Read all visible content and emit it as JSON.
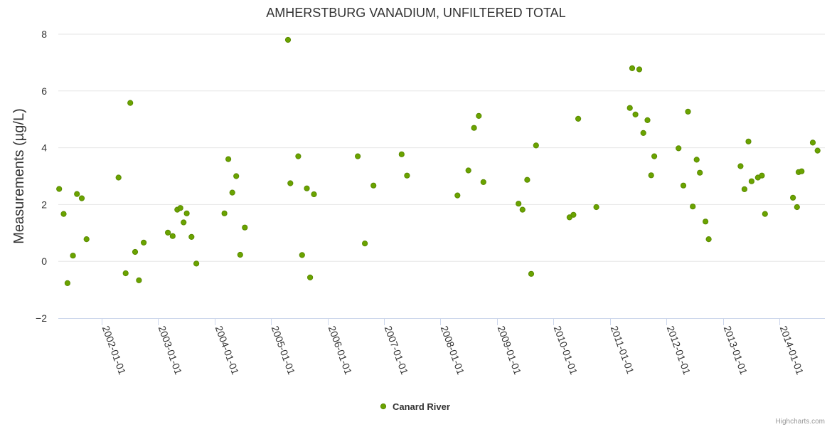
{
  "chart_data": {
    "type": "scatter",
    "title": "AMHERSTBURG VANADIUM, UNFILTERED TOTAL",
    "ylabel": "Measurements (µg/L)",
    "xlabel": "",
    "ylim": [
      -2,
      8
    ],
    "yticks": [
      -2,
      0,
      2,
      4,
      6,
      8
    ],
    "xlim": [
      "2001-03-25",
      "2014-10-13"
    ],
    "xticks": [
      "2002-01-01",
      "2003-01-01",
      "2004-01-01",
      "2005-01-01",
      "2006-01-01",
      "2007-01-01",
      "2008-01-01",
      "2009-01-01",
      "2010-01-01",
      "2011-01-01",
      "2012-01-01",
      "2013-01-01",
      "2014-01-01"
    ],
    "grid": true,
    "legend_position": "bottom-center",
    "series": [
      {
        "name": "Canard River",
        "color": "#6aa300",
        "stroke": "#5a8a00",
        "points": [
          [
            "2001-04-01",
            2.55
          ],
          [
            "2001-04-30",
            1.67
          ],
          [
            "2001-05-25",
            -0.77
          ],
          [
            "2001-06-29",
            0.2
          ],
          [
            "2001-07-25",
            2.37
          ],
          [
            "2001-08-25",
            2.22
          ],
          [
            "2001-09-25",
            0.78
          ],
          [
            "2002-04-20",
            2.95
          ],
          [
            "2002-06-05",
            -0.42
          ],
          [
            "2002-07-05",
            5.58
          ],
          [
            "2002-08-05",
            0.33
          ],
          [
            "2002-08-30",
            -0.67
          ],
          [
            "2002-09-30",
            0.66
          ],
          [
            "2003-03-05",
            1.01
          ],
          [
            "2003-04-05",
            0.89
          ],
          [
            "2003-05-05",
            1.82
          ],
          [
            "2003-05-25",
            1.88
          ],
          [
            "2003-06-15",
            1.37
          ],
          [
            "2003-07-05",
            1.69
          ],
          [
            "2003-08-05",
            0.86
          ],
          [
            "2003-09-05",
            -0.08
          ],
          [
            "2004-03-05",
            1.69
          ],
          [
            "2004-03-30",
            3.6
          ],
          [
            "2004-04-25",
            2.42
          ],
          [
            "2004-05-20",
            3.0
          ],
          [
            "2004-06-15",
            0.23
          ],
          [
            "2004-07-15",
            1.19
          ],
          [
            "2005-04-20",
            7.8
          ],
          [
            "2005-05-05",
            2.75
          ],
          [
            "2005-06-25",
            3.7
          ],
          [
            "2005-07-20",
            0.22
          ],
          [
            "2005-08-20",
            2.57
          ],
          [
            "2005-09-10",
            -0.57
          ],
          [
            "2005-10-05",
            2.36
          ],
          [
            "2006-07-15",
            3.7
          ],
          [
            "2006-08-30",
            0.63
          ],
          [
            "2006-10-25",
            2.67
          ],
          [
            "2007-04-25",
            3.77
          ],
          [
            "2007-05-30",
            3.02
          ],
          [
            "2008-04-20",
            2.32
          ],
          [
            "2008-06-30",
            3.2
          ],
          [
            "2008-08-05",
            4.7
          ],
          [
            "2008-09-05",
            5.12
          ],
          [
            "2008-10-05",
            2.79
          ],
          [
            "2009-05-20",
            2.03
          ],
          [
            "2009-06-15",
            1.82
          ],
          [
            "2009-07-15",
            2.87
          ],
          [
            "2009-08-10",
            -0.44
          ],
          [
            "2009-09-10",
            4.08
          ],
          [
            "2010-04-15",
            1.55
          ],
          [
            "2010-05-10",
            1.64
          ],
          [
            "2010-06-10",
            5.02
          ],
          [
            "2010-10-05",
            1.91
          ],
          [
            "2011-05-10",
            5.4
          ],
          [
            "2011-05-25",
            6.8
          ],
          [
            "2011-06-15",
            5.17
          ],
          [
            "2011-07-10",
            6.76
          ],
          [
            "2011-08-05",
            4.52
          ],
          [
            "2011-09-01",
            4.97
          ],
          [
            "2011-09-25",
            3.03
          ],
          [
            "2011-10-15",
            3.7
          ],
          [
            "2012-03-20",
            3.98
          ],
          [
            "2012-04-20",
            2.67
          ],
          [
            "2012-05-20",
            5.27
          ],
          [
            "2012-06-20",
            1.93
          ],
          [
            "2012-07-15",
            3.58
          ],
          [
            "2012-08-05",
            3.12
          ],
          [
            "2012-09-10",
            1.4
          ],
          [
            "2012-10-01",
            0.78
          ],
          [
            "2013-04-25",
            3.35
          ],
          [
            "2013-05-20",
            2.54
          ],
          [
            "2013-06-15",
            4.22
          ],
          [
            "2013-07-05",
            2.82
          ],
          [
            "2013-08-15",
            2.95
          ],
          [
            "2013-09-10",
            3.02
          ],
          [
            "2013-09-30",
            1.67
          ],
          [
            "2014-03-30",
            2.24
          ],
          [
            "2014-04-25",
            1.91
          ],
          [
            "2014-05-05",
            3.14
          ],
          [
            "2014-05-25",
            3.17
          ],
          [
            "2014-08-05",
            4.18
          ],
          [
            "2014-09-05",
            3.9
          ]
        ]
      }
    ]
  },
  "credits": "Highcharts.com"
}
